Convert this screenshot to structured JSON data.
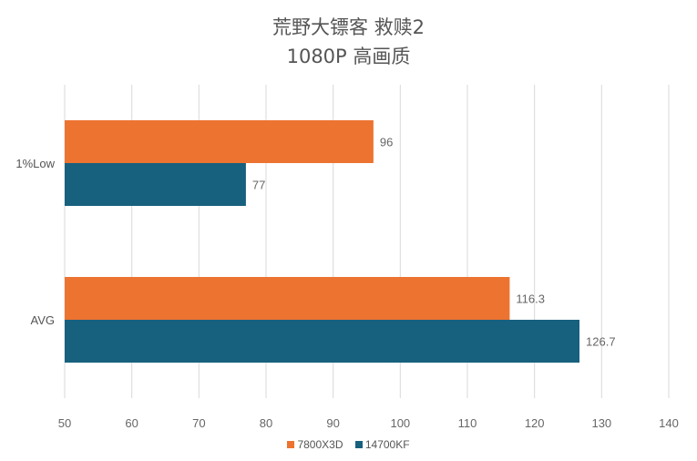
{
  "chart_data": {
    "type": "bar",
    "orientation": "horizontal",
    "title": "荒野大镖客 救赎2",
    "subtitle": "1080P 高画质",
    "categories": [
      "1%Low",
      "AVG"
    ],
    "series": [
      {
        "name": "7800X3D",
        "color": "#ED7331",
        "values": [
          96,
          116.3
        ]
      },
      {
        "name": "14700KF",
        "color": "#17607E",
        "values": [
          77,
          126.7
        ]
      }
    ],
    "xlim": [
      50,
      140
    ],
    "xticks": [
      50,
      60,
      70,
      80,
      90,
      100,
      110,
      120,
      130,
      140
    ],
    "grid": "vertical",
    "legend_position": "bottom"
  }
}
